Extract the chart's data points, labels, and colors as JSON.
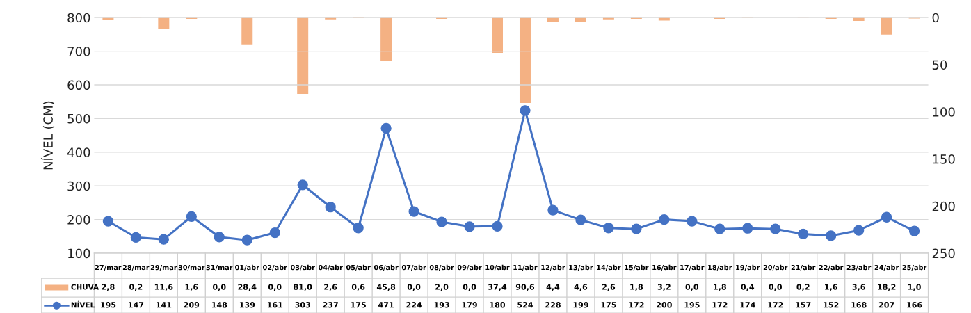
{
  "chart_data": {
    "type": "line",
    "ylabel": "NÍVEL (CM)",
    "categories": [
      "27/mar",
      "28/mar",
      "29/mar",
      "30/mar",
      "31/mar",
      "01/abr",
      "02/abr",
      "03/abr",
      "04/abr",
      "05/abr",
      "06/abr",
      "07/abr",
      "08/abr",
      "09/abr",
      "10/abr",
      "11/abr",
      "12/abr",
      "13/abr",
      "14/abr",
      "15/abr",
      "16/abr",
      "17/abr",
      "18/abr",
      "19/abr",
      "20/abr",
      "21/abr",
      "22/abr",
      "23/abr",
      "24/abr",
      "25/abr"
    ],
    "series": [
      {
        "name": "CHUVA",
        "type": "bar",
        "axis": "y2",
        "color": "#f4b183",
        "values": [
          2.8,
          0.2,
          11.6,
          1.6,
          0.0,
          28.4,
          0.0,
          81.0,
          2.6,
          0.6,
          45.8,
          0.0,
          2.0,
          0.0,
          37.4,
          90.6,
          4.4,
          4.6,
          2.6,
          1.8,
          3.2,
          0.0,
          1.8,
          0.4,
          0.0,
          0.2,
          1.6,
          3.6,
          18.2,
          1.0
        ],
        "value_labels": [
          "2,8",
          "0,2",
          "11,6",
          "1,6",
          "0,0",
          "28,4",
          "0,0",
          "81,0",
          "2,6",
          "0,6",
          "45,8",
          "0,0",
          "2,0",
          "0,0",
          "37,4",
          "90,6",
          "4,4",
          "4,6",
          "2,6",
          "1,8",
          "3,2",
          "0,0",
          "1,8",
          "0,4",
          "0,0",
          "0,2",
          "1,6",
          "3,6",
          "18,2",
          "1,0"
        ]
      },
      {
        "name": "NÍVEL",
        "color": "#4472c4",
        "values": [
          195,
          147,
          141,
          209,
          148,
          139,
          161,
          303,
          237,
          175,
          471,
          224,
          193,
          179,
          180,
          524,
          228,
          199,
          175,
          172,
          200,
          195,
          172,
          174,
          172,
          157,
          152,
          168,
          207,
          166
        ],
        "value_labels": [
          "195",
          "147",
          "141",
          "209",
          "148",
          "139",
          "161",
          "303",
          "237",
          "175",
          "471",
          "224",
          "193",
          "179",
          "180",
          "524",
          "228",
          "199",
          "175",
          "172",
          "200",
          "195",
          "172",
          "174",
          "172",
          "157",
          "152",
          "168",
          "207",
          "166"
        ]
      }
    ],
    "ylim": [
      100,
      800
    ],
    "yticks": [
      100,
      200,
      300,
      400,
      500,
      600,
      700,
      800
    ],
    "y2lim": [
      250,
      0
    ],
    "y2ticks": [
      0,
      50,
      100,
      150,
      200,
      250
    ],
    "grid": "y",
    "marker": "circle",
    "line_style": "solid",
    "legend": "bottom"
  }
}
